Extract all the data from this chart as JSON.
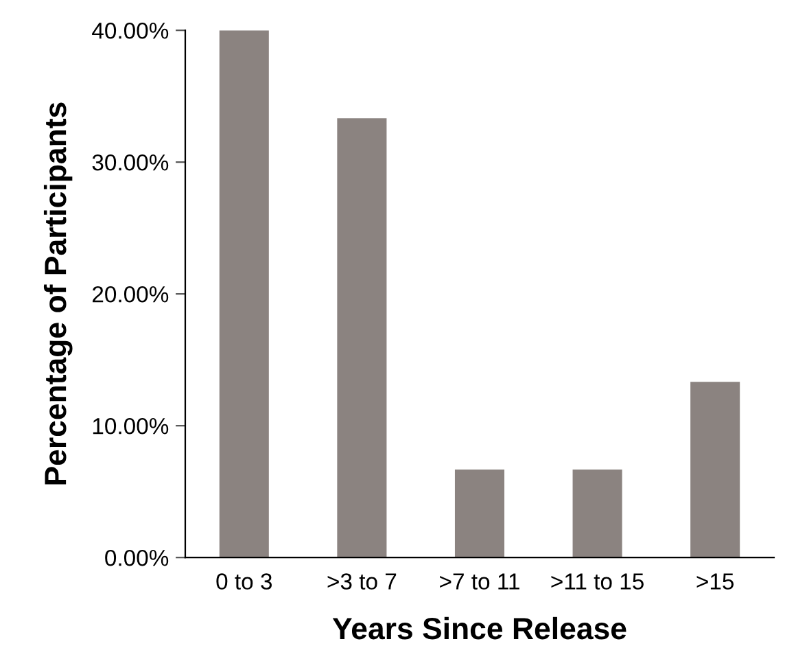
{
  "chart_data": {
    "type": "bar",
    "xlabel": "Years Since Release",
    "ylabel": "Percentage of Participants",
    "categories": [
      "0 to 3",
      ">3 to 7",
      ">7 to 11",
      ">11 to 15",
      ">15"
    ],
    "values": [
      40.0,
      33.33,
      6.67,
      6.67,
      13.33
    ],
    "color": "#8b8380",
    "ylim": [
      0,
      40
    ],
    "yticks": [
      {
        "value": 0,
        "label": "0.00%"
      },
      {
        "value": 10,
        "label": "10.00%"
      },
      {
        "value": 20,
        "label": "20.00%"
      },
      {
        "value": 30,
        "label": "30.00%"
      },
      {
        "value": 40,
        "label": "40.00%"
      }
    ],
    "grid": false,
    "legend": false
  }
}
